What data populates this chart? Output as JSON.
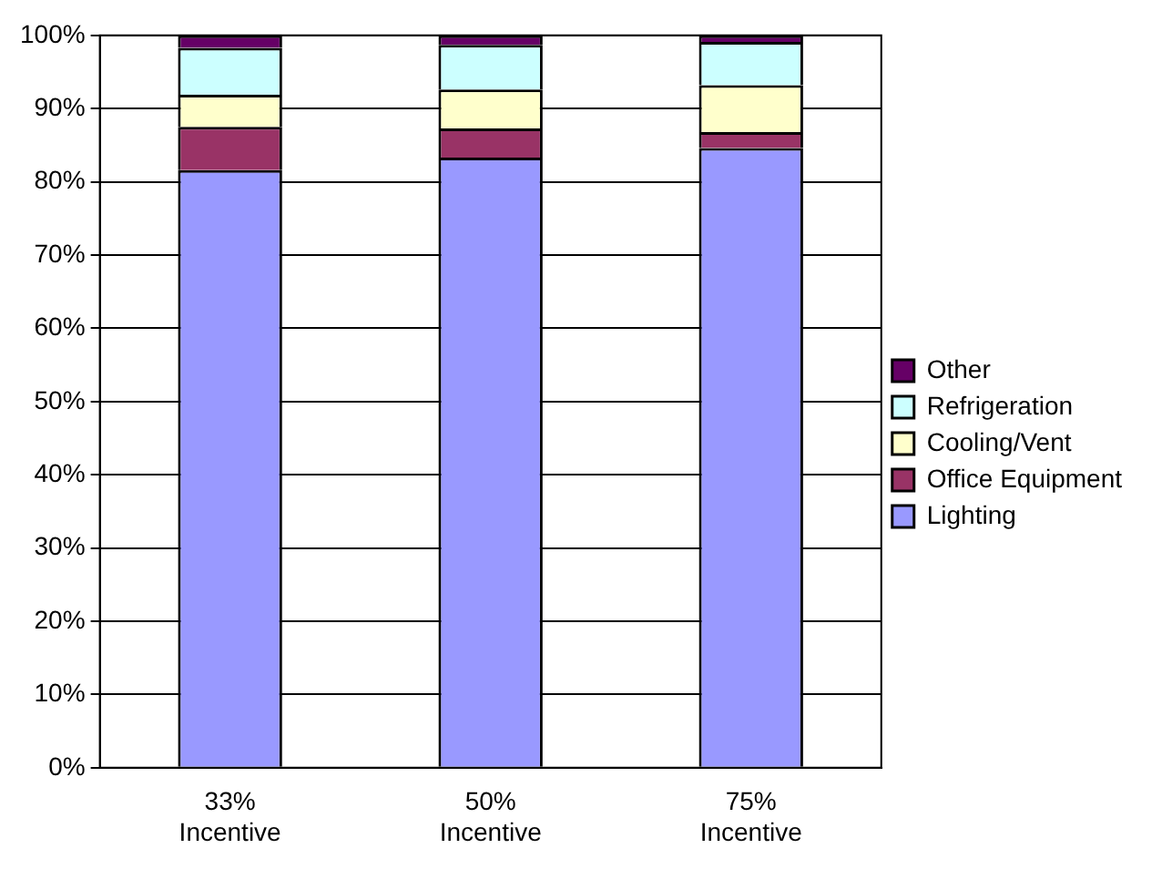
{
  "chart_data": {
    "type": "bar",
    "stacked": true,
    "categories": [
      "33% Incentive",
      "50% Incentive",
      "75% Incentive"
    ],
    "series": [
      {
        "name": "Lighting",
        "color": "#9999ff",
        "values": [
          81.6,
          83.3,
          84.6
        ]
      },
      {
        "name": "Office Equipment",
        "color": "#993366",
        "values": [
          5.9,
          4.0,
          2.2
        ]
      },
      {
        "name": "Cooling/Vent",
        "color": "#ffffcc",
        "values": [
          4.4,
          5.3,
          6.4
        ]
      },
      {
        "name": "Refrigeration",
        "color": "#ccffff",
        "values": [
          6.4,
          6.1,
          5.9
        ]
      },
      {
        "name": "Other",
        "color": "#660066",
        "values": [
          1.7,
          1.3,
          0.9
        ]
      }
    ],
    "ylim": [
      0,
      100
    ],
    "yticks": [
      {
        "value": 0,
        "label": "0%"
      },
      {
        "value": 10,
        "label": "10%"
      },
      {
        "value": 20,
        "label": "20%"
      },
      {
        "value": 30,
        "label": "30%"
      },
      {
        "value": 40,
        "label": "40%"
      },
      {
        "value": 50,
        "label": "50%"
      },
      {
        "value": 60,
        "label": "60%"
      },
      {
        "value": 70,
        "label": "70%"
      },
      {
        "value": 80,
        "label": "80%"
      },
      {
        "value": 90,
        "label": "90%"
      },
      {
        "value": 100,
        "label": "100%"
      }
    ],
    "grid": "y",
    "legend": "right"
  }
}
